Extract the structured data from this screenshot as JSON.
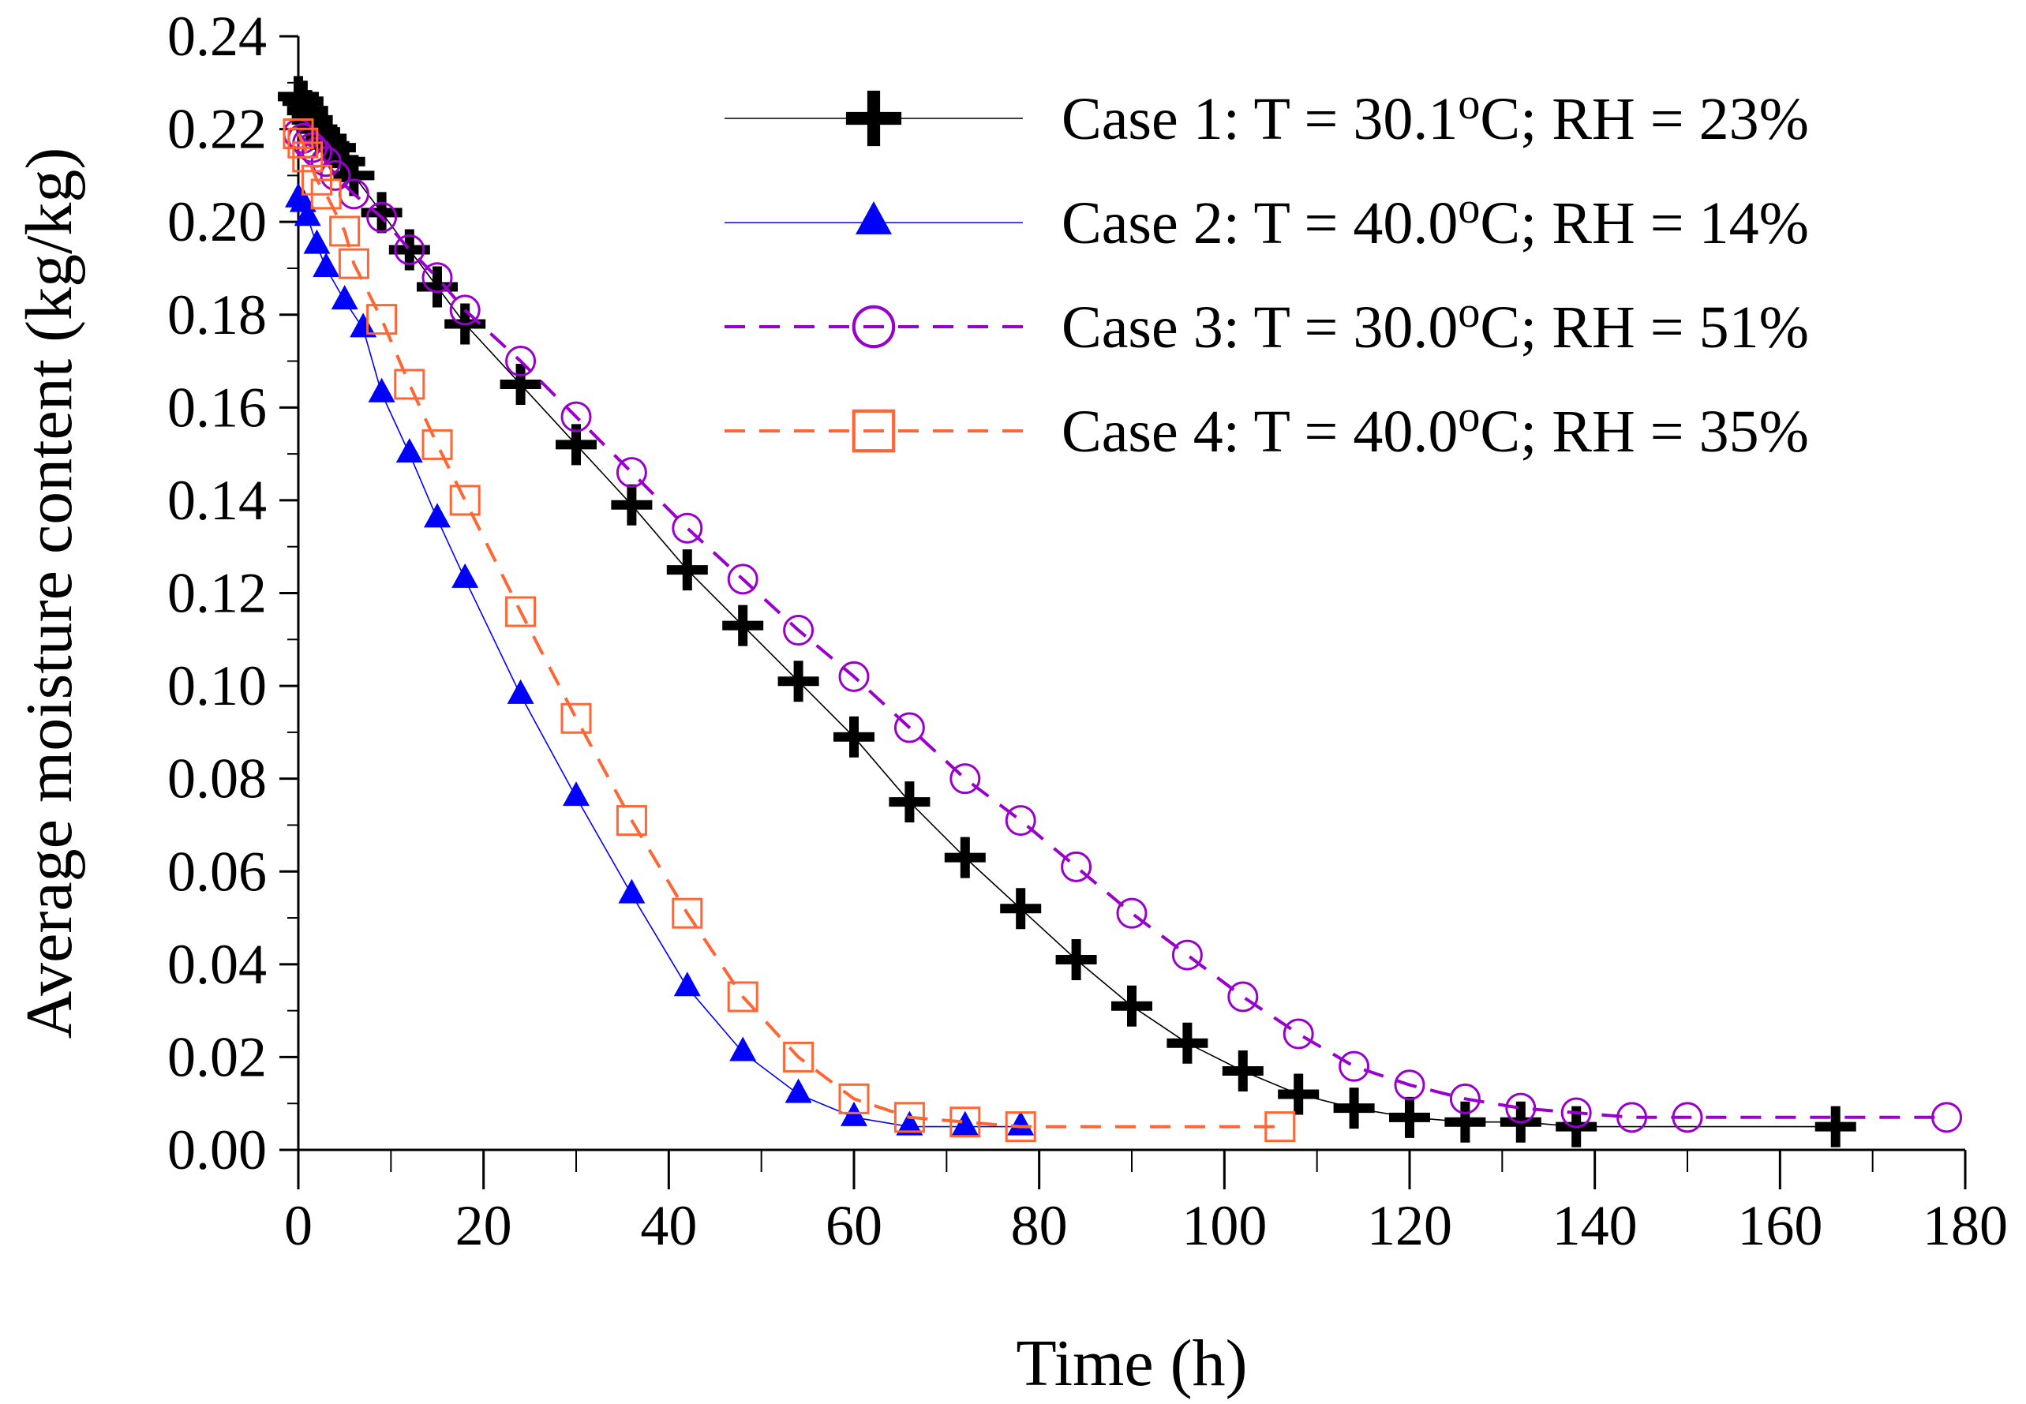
{
  "chart_data": {
    "type": "line",
    "title": "",
    "xlabel": "Time (h)",
    "ylabel": "Average moisture content (kg/kg)",
    "xlim": [
      0,
      180
    ],
    "ylim": [
      0,
      0.24
    ],
    "xticks": [
      "0",
      "20",
      "40",
      "60",
      "80",
      "100",
      "120",
      "140",
      "160",
      "180"
    ],
    "yticks": [
      "0.00",
      "0.02",
      "0.04",
      "0.06",
      "0.08",
      "0.10",
      "0.12",
      "0.14",
      "0.16",
      "0.18",
      "0.20",
      "0.22",
      "0.24"
    ],
    "grid": false,
    "legend_position": "top-right",
    "series": [
      {
        "name": "Case 1",
        "label_prefix": "Case 1: T = 30.1",
        "label_degree": "o",
        "label_suffix": "C; RH = 23%",
        "color": "#000000",
        "line_style": "solid",
        "marker": "plus",
        "x": [
          0,
          0.5,
          1,
          1.5,
          2,
          3,
          4,
          5,
          6,
          9,
          12,
          15,
          18,
          24,
          30,
          36,
          42,
          48,
          54,
          60,
          66,
          72,
          78,
          84,
          90,
          96,
          102,
          108,
          114,
          120,
          126,
          132,
          138,
          166
        ],
        "y": [
          0.227,
          0.226,
          0.224,
          0.222,
          0.22,
          0.218,
          0.216,
          0.213,
          0.21,
          0.202,
          0.194,
          0.186,
          0.178,
          0.165,
          0.152,
          0.139,
          0.125,
          0.113,
          0.101,
          0.089,
          0.075,
          0.063,
          0.052,
          0.041,
          0.031,
          0.023,
          0.017,
          0.012,
          0.009,
          0.007,
          0.006,
          0.006,
          0.005,
          0.005
        ]
      },
      {
        "name": "Case 2",
        "label_prefix": "Case 2: T = 40.0",
        "label_degree": "o",
        "label_suffix": "C; RH = 14%",
        "color": "#0000ff",
        "line_style": "solid",
        "marker": "triangle",
        "x": [
          0,
          0.5,
          1,
          2,
          3,
          5,
          7,
          9,
          12,
          15,
          18,
          24,
          30,
          36,
          42,
          48,
          54,
          60,
          66,
          72,
          78
        ],
        "y": [
          0.205,
          0.204,
          0.201,
          0.195,
          0.19,
          0.183,
          0.177,
          0.163,
          0.15,
          0.136,
          0.123,
          0.098,
          0.076,
          0.055,
          0.035,
          0.021,
          0.012,
          0.007,
          0.005,
          0.005,
          0.005
        ]
      },
      {
        "name": "Case 3",
        "label_prefix": "Case 3: T = 30.0",
        "label_degree": "o",
        "label_suffix": "C; RH = 51%",
        "color": "#9900cc",
        "line_style": "dashed",
        "marker": "circle",
        "x": [
          0,
          0.5,
          1,
          1.5,
          2,
          3,
          4,
          6,
          9,
          12,
          15,
          18,
          24,
          30,
          36,
          42,
          48,
          54,
          60,
          66,
          72,
          78,
          84,
          90,
          96,
          102,
          108,
          114,
          120,
          126,
          132,
          138,
          144,
          150,
          178
        ],
        "y": [
          0.219,
          0.218,
          0.217,
          0.216,
          0.215,
          0.213,
          0.21,
          0.206,
          0.201,
          0.194,
          0.188,
          0.181,
          0.17,
          0.158,
          0.146,
          0.134,
          0.123,
          0.112,
          0.102,
          0.091,
          0.08,
          0.071,
          0.061,
          0.051,
          0.042,
          0.033,
          0.025,
          0.018,
          0.014,
          0.011,
          0.009,
          0.008,
          0.007,
          0.007,
          0.007
        ]
      },
      {
        "name": "Case 4",
        "label_prefix": "Case 4: T = 40.0",
        "label_degree": "o",
        "label_suffix": "C; RH = 35%",
        "color": "#ff6633",
        "line_style": "dashed",
        "marker": "square",
        "x": [
          0,
          0.5,
          1,
          2,
          3,
          5,
          6,
          9,
          12,
          15,
          18,
          24,
          30,
          36,
          42,
          48,
          54,
          60,
          66,
          72,
          78,
          106
        ],
        "y": [
          0.219,
          0.217,
          0.214,
          0.209,
          0.206,
          0.198,
          0.191,
          0.179,
          0.165,
          0.152,
          0.14,
          0.116,
          0.093,
          0.071,
          0.051,
          0.033,
          0.02,
          0.011,
          0.007,
          0.006,
          0.005,
          0.005
        ]
      }
    ]
  }
}
